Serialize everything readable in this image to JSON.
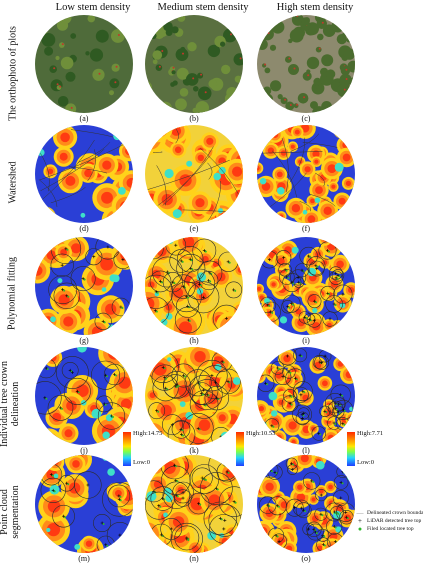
{
  "columns": [
    "Low stem density",
    "Medium stem density",
    "High stem density"
  ],
  "rows": [
    "The orthophoto of plots",
    "Watershed",
    "Polynomial fitting",
    "Individual tree crown delineation",
    "Point cloud segmentation"
  ],
  "row_label_lines": {
    "delineation": [
      "Individual tree crown",
      "delineation"
    ],
    "segmentation": [
      "Point  cloud",
      "segmentation"
    ]
  },
  "panel_letters": [
    "(a)",
    "(b)",
    "(c)",
    "(d)",
    "(e)",
    "(f)",
    "(g)",
    "(h)",
    "(i)",
    "(j)",
    "(k)",
    "(l)",
    "(m)",
    "(n)",
    "(o)"
  ],
  "colorbars": [
    {
      "high": "High:14.75",
      "low": "Low:0"
    },
    {
      "high": "High:10.53",
      "low": ""
    },
    {
      "high": "High:7.71",
      "low": "Low:0"
    }
  ],
  "legend": [
    {
      "symbol": "—",
      "label": "Delineated crown boundary",
      "color": "#888888"
    },
    {
      "symbol": "+",
      "label": "LiDAR detected tree top",
      "color": "#000000"
    },
    {
      "symbol": "●",
      "label": "Filed located tree top",
      "color": "#2db82d"
    }
  ]
}
